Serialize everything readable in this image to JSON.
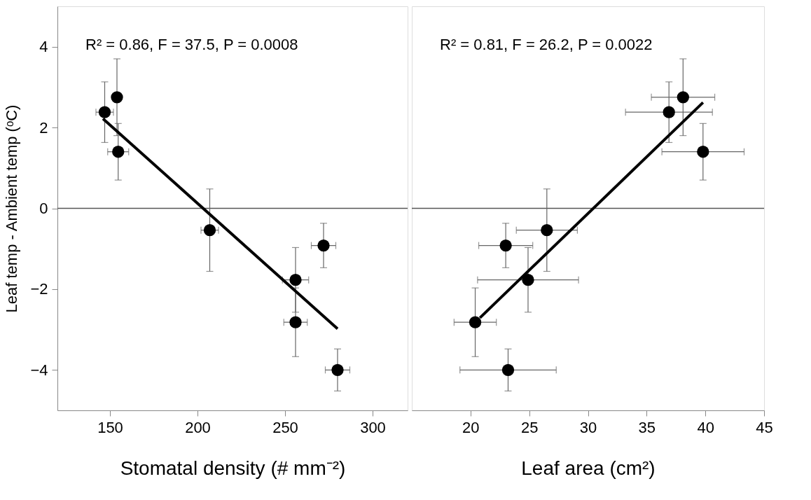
{
  "chart_data": [
    {
      "type": "scatter",
      "xlabel": "Stomatal density (# mm⁻²)",
      "ylabel": "Leaf temp - Ambient temp (ᵒC)",
      "xlim": [
        120,
        320
      ],
      "xticks": [
        150,
        200,
        250,
        300
      ],
      "ylim": [
        -5,
        5
      ],
      "yticks": [
        -4,
        -2,
        0,
        2,
        4
      ],
      "grid": false,
      "marker": "circle",
      "annotations": [
        "R² = 0.86, F = 37.5, P = 0.0008"
      ],
      "ref_lines": [
        {
          "axis": "y",
          "value": 0,
          "color": "#555555"
        }
      ],
      "series": [
        {
          "color": "#000000",
          "x": [
            147,
            154,
            154.7,
            207,
            272,
            256,
            256,
            280
          ],
          "values": [
            2.38,
            2.75,
            1.4,
            -0.54,
            -0.92,
            -1.77,
            -2.82,
            -4.0
          ],
          "errors": [
            0.75,
            0.95,
            0.7,
            1.02,
            0.55,
            0.8,
            0.85,
            0.52
          ],
          "xerrors": [
            5,
            null,
            6,
            5,
            7,
            7.5,
            6.7,
            7
          ]
        },
        {
          "type": "line",
          "color": "#000000",
          "x": [
            146,
            280
          ],
          "values": [
            2.22,
            -2.98
          ],
          "line_style": "solid",
          "marker": "none"
        }
      ]
    },
    {
      "type": "scatter",
      "xlabel": "Leaf area (cm²)",
      "xlim": [
        15,
        45
      ],
      "xticks": [
        20,
        25,
        30,
        35,
        40,
        45
      ],
      "ylim": [
        -5,
        5
      ],
      "yticks": [
        -4,
        -2,
        0,
        2,
        4
      ],
      "tick_labels": "x",
      "grid": false,
      "marker": "circle",
      "annotations": [
        "R² = 0.81, F = 26.2, P = 0.0022"
      ],
      "ref_lines": [
        {
          "axis": "y",
          "value": 0,
          "color": "#555555"
        }
      ],
      "series": [
        {
          "color": "#000000",
          "x": [
            36.9,
            38.1,
            39.8,
            26.5,
            23.0,
            24.9,
            20.4,
            23.2
          ],
          "values": [
            2.38,
            2.75,
            1.4,
            -0.54,
            -0.92,
            -1.77,
            -2.82,
            -4.0
          ],
          "errors": [
            0.75,
            0.95,
            0.7,
            1.02,
            0.55,
            0.8,
            0.85,
            0.52
          ],
          "xerrors": [
            3.7,
            2.7,
            3.5,
            2.6,
            2.3,
            4.3,
            1.8,
            4.1
          ]
        },
        {
          "type": "line",
          "color": "#000000",
          "x": [
            20.8,
            39.8
          ],
          "values": [
            -2.71,
            2.62
          ],
          "line_style": "solid",
          "marker": "none"
        }
      ]
    }
  ]
}
